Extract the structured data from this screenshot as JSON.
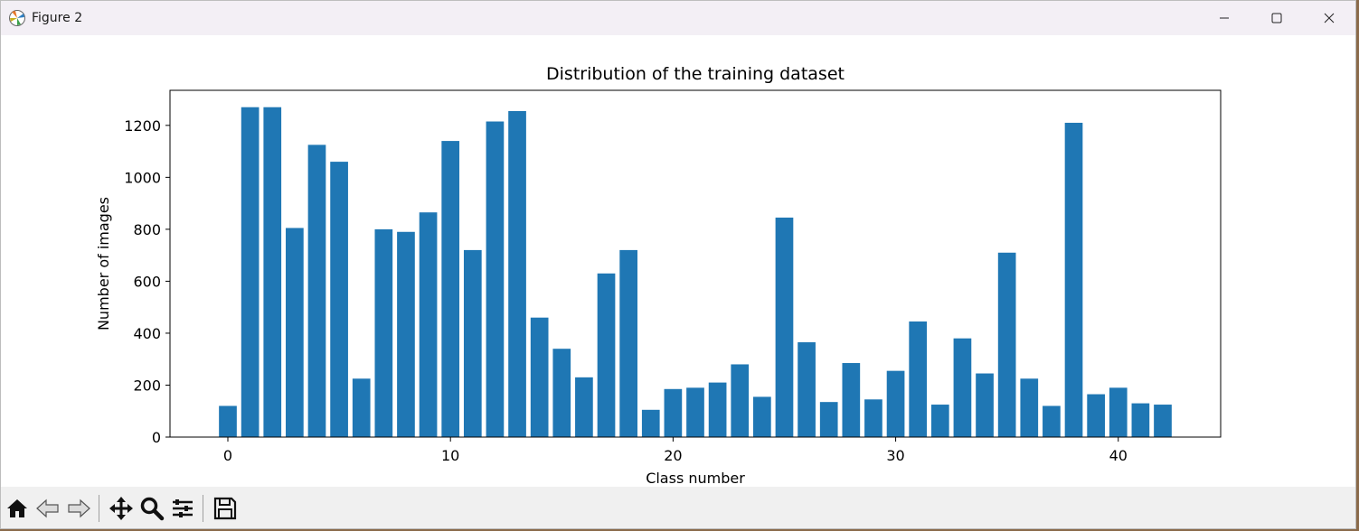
{
  "window": {
    "title": "Figure 2"
  },
  "colors": {
    "bar": "#1f77b4",
    "titlebar": "#f3eff5",
    "toolbar": "#f0f0f0"
  },
  "icons": {
    "app": "matplotlib-icon",
    "minimize": "minimize-icon",
    "maximize": "maximize-icon",
    "close": "close-icon"
  },
  "toolbar": [
    {
      "name": "home-icon",
      "tooltip": "Home"
    },
    {
      "name": "back-icon",
      "tooltip": "Back"
    },
    {
      "name": "forward-icon",
      "tooltip": "Forward"
    },
    {
      "name": "pan-icon",
      "tooltip": "Pan"
    },
    {
      "name": "zoom-icon",
      "tooltip": "Zoom"
    },
    {
      "name": "configure-subplots-icon",
      "tooltip": "Subplots"
    },
    {
      "name": "save-icon",
      "tooltip": "Save"
    }
  ],
  "chart_data": {
    "type": "bar",
    "title": "Distribution of the training dataset",
    "xlabel": "Class number",
    "ylabel": "Number of images",
    "x": [
      0,
      1,
      2,
      3,
      4,
      5,
      6,
      7,
      8,
      9,
      10,
      11,
      12,
      13,
      14,
      15,
      16,
      17,
      18,
      19,
      20,
      21,
      22,
      23,
      24,
      25,
      26,
      27,
      28,
      29,
      30,
      31,
      32,
      33,
      34,
      35,
      36,
      37,
      38,
      39,
      40,
      41,
      42
    ],
    "values": [
      120,
      1270,
      1270,
      805,
      1125,
      1060,
      225,
      800,
      790,
      865,
      1140,
      720,
      1215,
      1255,
      460,
      340,
      230,
      630,
      720,
      105,
      185,
      190,
      210,
      280,
      155,
      845,
      365,
      135,
      285,
      145,
      255,
      445,
      125,
      380,
      245,
      710,
      225,
      120,
      1210,
      165,
      190,
      130,
      125
    ],
    "xlim": [
      -2.6,
      44.6
    ],
    "ylim": [
      0,
      1335
    ],
    "xticks": [
      0,
      10,
      20,
      30,
      40
    ],
    "yticks": [
      0,
      200,
      400,
      600,
      800,
      1000,
      1200
    ],
    "grid": false
  }
}
